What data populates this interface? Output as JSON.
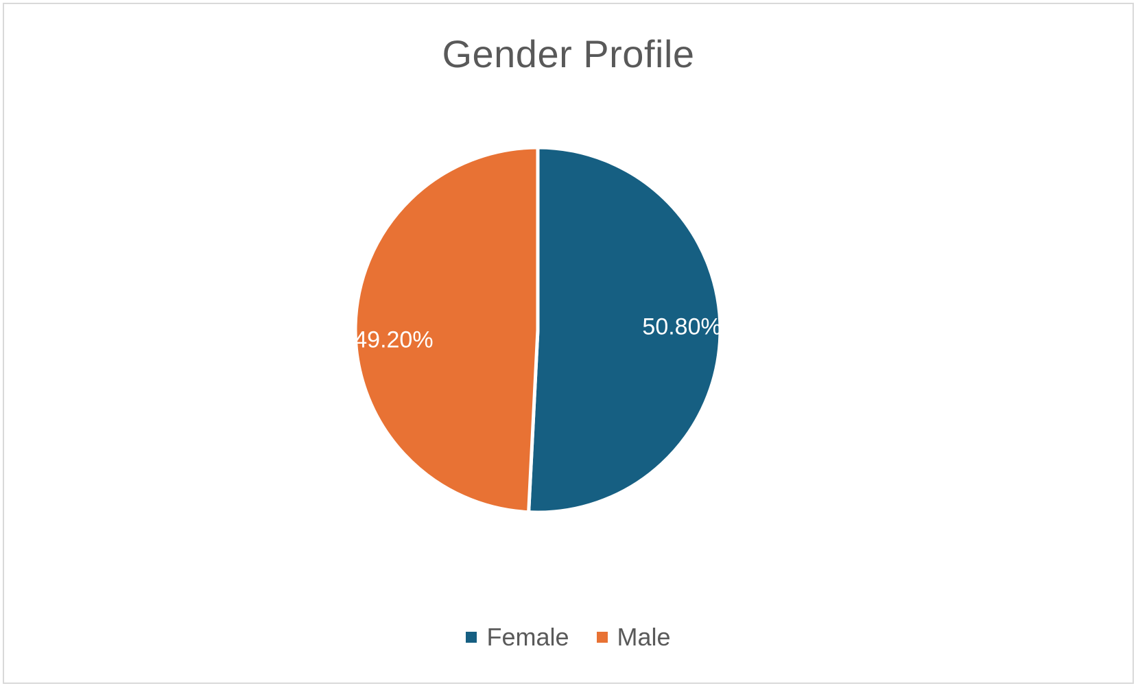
{
  "chart_data": {
    "type": "pie",
    "title": "Gender Profile",
    "categories": [
      "Female",
      "Male"
    ],
    "values": [
      50.8,
      49.2
    ],
    "data_labels": [
      "50.80%",
      "49.20%"
    ],
    "colors": [
      "#165f82",
      "#e87234"
    ],
    "legend": {
      "placement": "bottom",
      "entries": [
        "Female",
        "Male"
      ]
    }
  }
}
